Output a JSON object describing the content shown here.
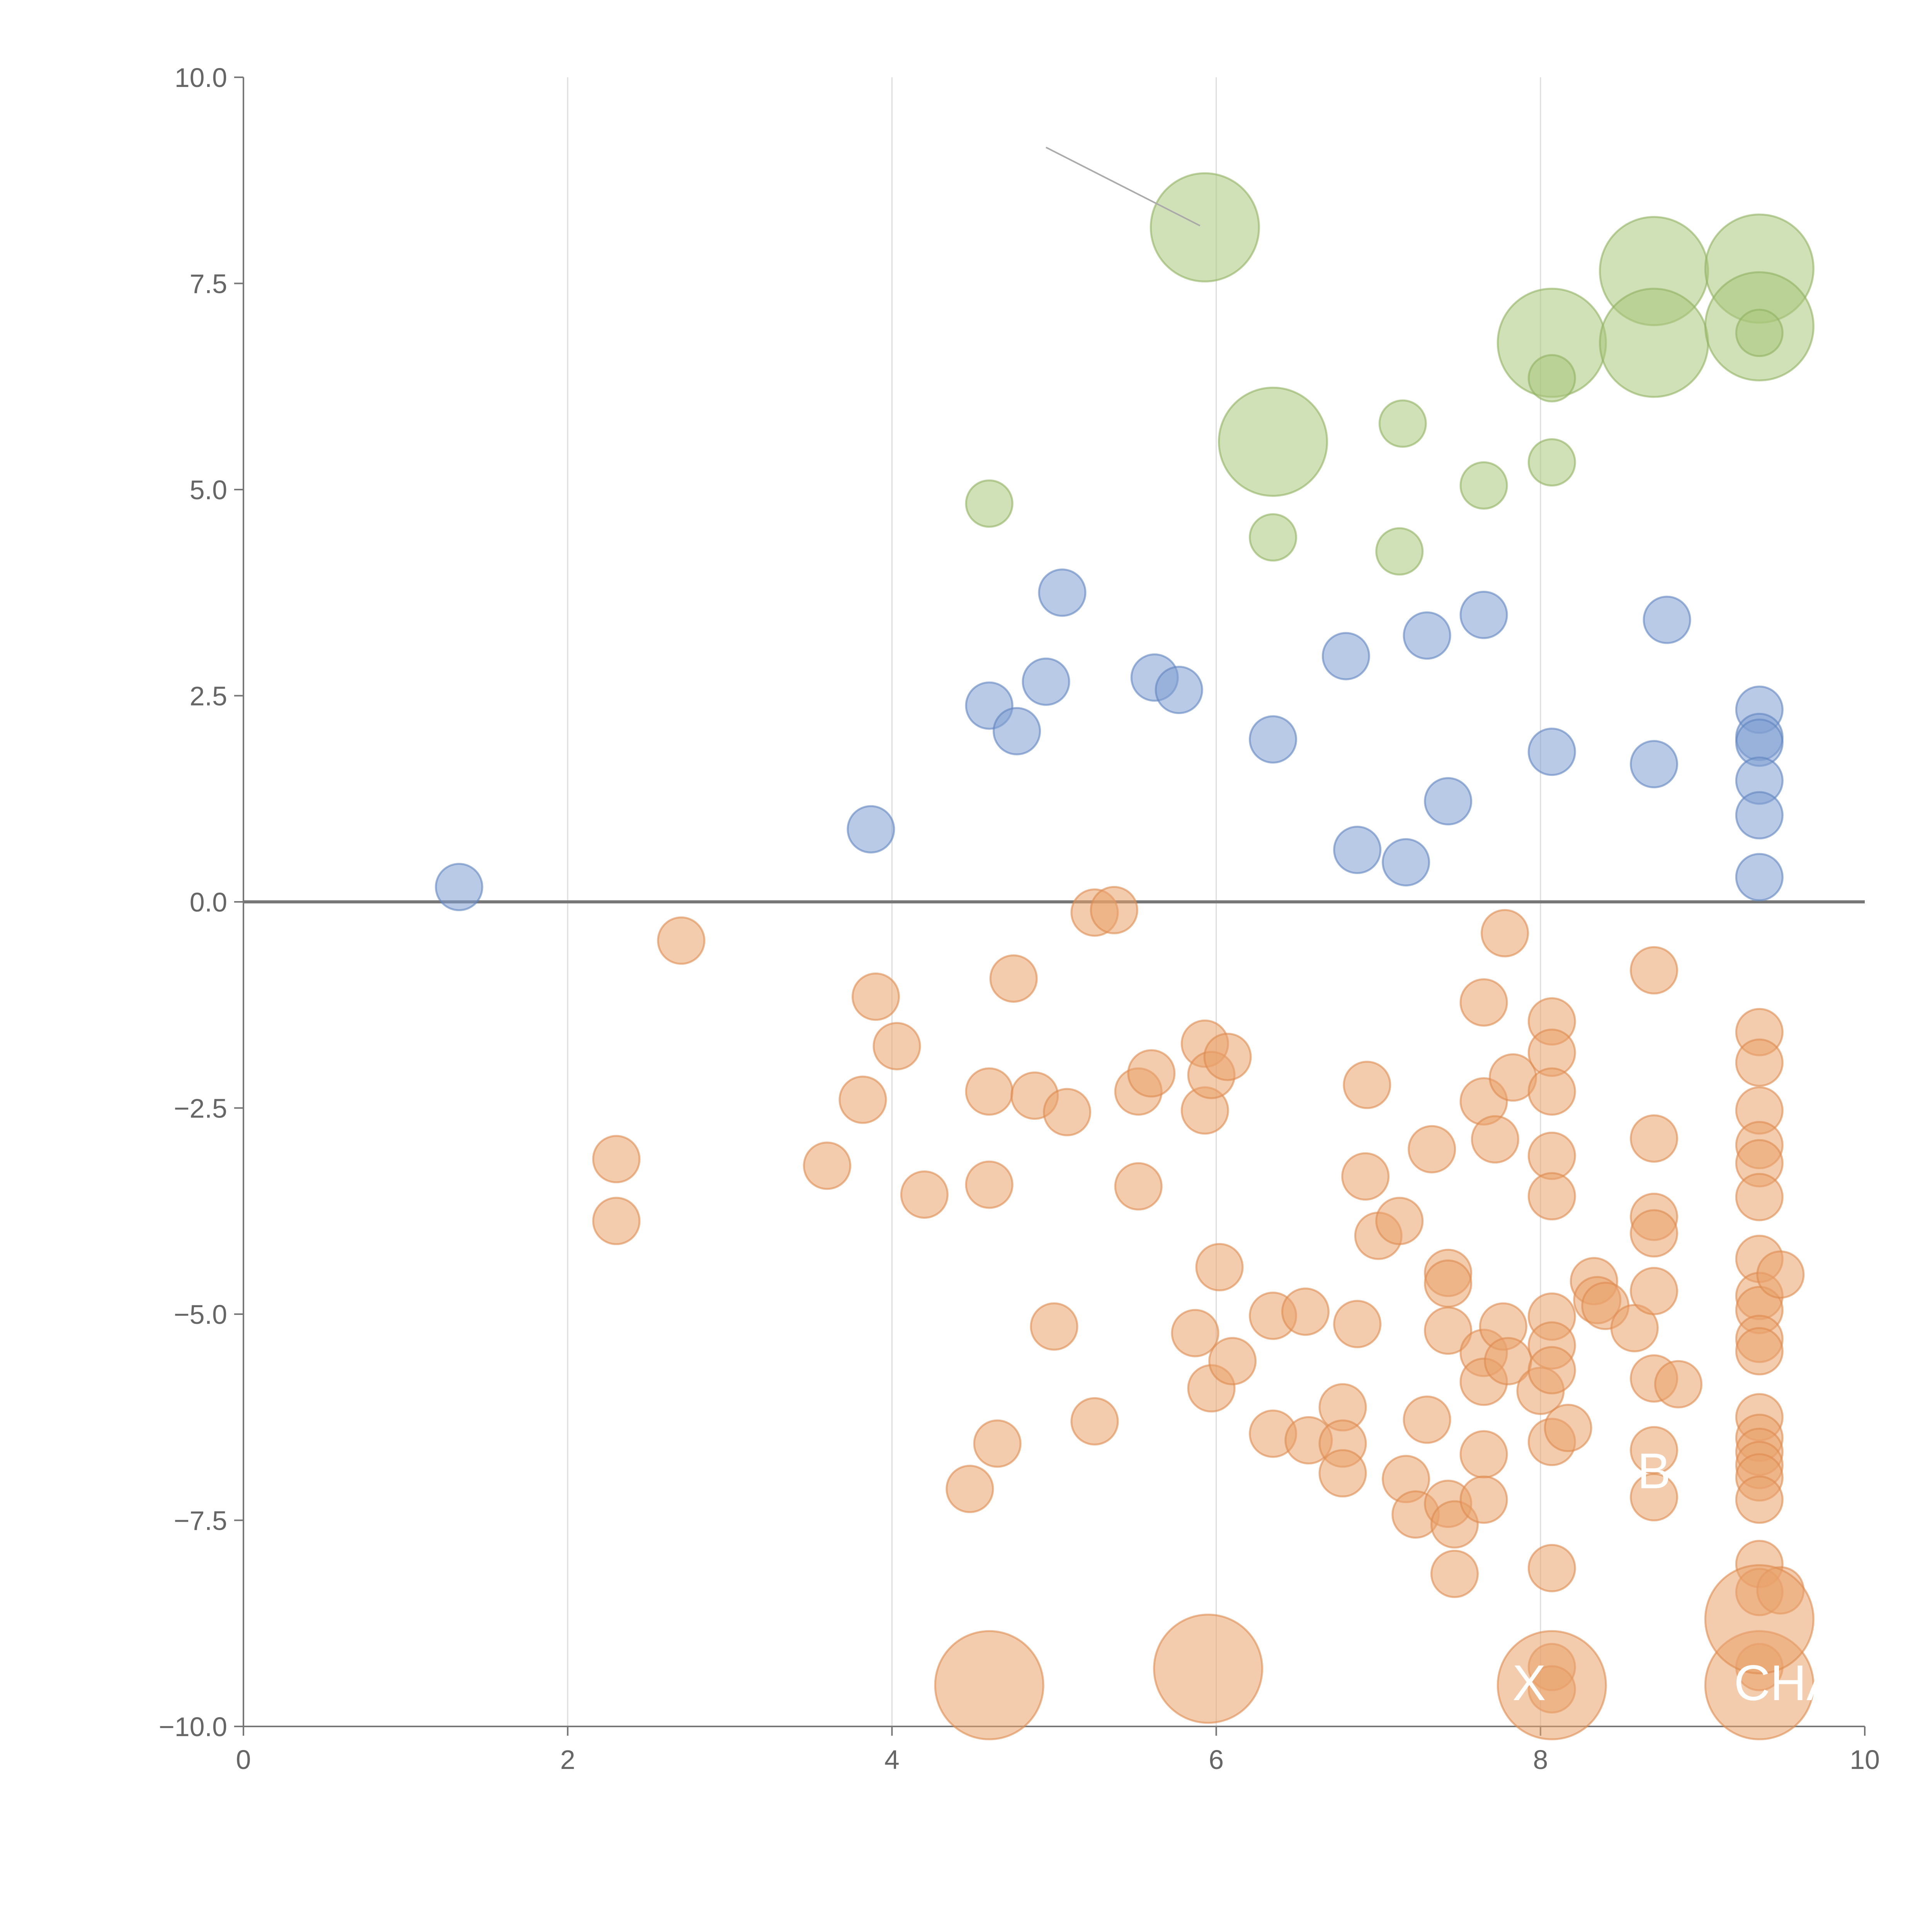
{
  "chart_data": {
    "type": "scatter",
    "title": "",
    "xlabel": "",
    "ylabel": "",
    "xlim": [
      0,
      10
    ],
    "ylim": [
      -10,
      10
    ],
    "grid": "vertical",
    "x_ticks": [
      "0",
      "2",
      "4",
      "6",
      "8",
      "10"
    ],
    "y_ticks": [
      "10.0",
      "7.5",
      "5.0",
      "2.5",
      "0.0",
      "−2.5",
      "−5.0",
      "−7.5",
      "−10.0"
    ],
    "colors": {
      "green": "#a9c77c",
      "blue": "#7f9fd1",
      "orange": "#eaa26c",
      "green_stroke": "#8fb060",
      "blue_stroke": "#5f84c0",
      "orange_stroke": "#de8a4f"
    },
    "series": [
      {
        "name": "green",
        "color": "green",
        "points": [
          [
            5.93,
            8.18,
            2
          ],
          [
            6.35,
            5.58,
            2
          ],
          [
            8.07,
            6.78,
            2
          ],
          [
            8.7,
            7.65,
            2
          ],
          [
            8.7,
            6.78,
            2
          ],
          [
            9.35,
            7.68,
            2
          ],
          [
            9.35,
            6.98,
            2
          ],
          [
            9.35,
            6.9,
            0
          ],
          [
            8.07,
            6.35,
            0
          ],
          [
            7.15,
            5.8,
            0
          ],
          [
            7.65,
            5.05,
            0
          ],
          [
            8.07,
            5.33,
            0
          ],
          [
            4.6,
            4.83,
            0
          ],
          [
            6.35,
            4.42,
            0
          ],
          [
            7.13,
            4.25,
            0
          ]
        ]
      },
      {
        "name": "blue",
        "color": "blue",
        "points": [
          [
            1.33,
            0.18,
            0
          ],
          [
            3.87,
            0.88,
            0
          ],
          [
            4.6,
            2.38,
            0
          ],
          [
            4.77,
            2.07,
            0
          ],
          [
            4.95,
            2.67,
            0
          ],
          [
            5.05,
            3.75,
            0
          ],
          [
            5.62,
            2.72,
            0
          ],
          [
            5.77,
            2.57,
            0
          ],
          [
            6.35,
            1.97,
            0
          ],
          [
            6.8,
            2.98,
            0
          ],
          [
            6.87,
            0.63,
            0
          ],
          [
            7.17,
            0.48,
            0
          ],
          [
            7.3,
            3.23,
            0
          ],
          [
            7.43,
            1.22,
            0
          ],
          [
            7.65,
            3.48,
            0
          ],
          [
            8.07,
            1.82,
            0
          ],
          [
            8.7,
            1.67,
            0
          ],
          [
            8.78,
            3.42,
            0
          ],
          [
            9.35,
            2.33,
            0
          ],
          [
            9.35,
            2.0,
            0
          ],
          [
            9.35,
            1.93,
            0
          ],
          [
            9.35,
            1.47,
            0
          ],
          [
            9.35,
            1.05,
            0
          ],
          [
            9.35,
            0.3,
            0
          ]
        ]
      },
      {
        "name": "orange",
        "color": "orange",
        "points": [
          [
            2.3,
            -3.12,
            0
          ],
          [
            2.3,
            -3.87,
            0
          ],
          [
            2.7,
            -0.47,
            0
          ],
          [
            3.6,
            -3.2,
            0
          ],
          [
            3.82,
            -2.4,
            0
          ],
          [
            3.9,
            -1.15,
            0
          ],
          [
            4.03,
            -1.75,
            0
          ],
          [
            4.2,
            -3.55,
            0
          ],
          [
            4.48,
            -7.12,
            0
          ],
          [
            4.6,
            -2.3,
            0
          ],
          [
            4.6,
            -3.43,
            0
          ],
          [
            4.65,
            -6.57,
            0
          ],
          [
            4.75,
            -0.93,
            0
          ],
          [
            4.88,
            -2.35,
            0
          ],
          [
            5.0,
            -5.15,
            0
          ],
          [
            5.08,
            -2.55,
            0
          ],
          [
            5.25,
            -0.13,
            0
          ],
          [
            5.25,
            -6.3,
            0
          ],
          [
            5.37,
            -0.1,
            0
          ],
          [
            5.52,
            -2.3,
            0
          ],
          [
            5.52,
            -3.45,
            0
          ],
          [
            5.6,
            -2.08,
            0
          ],
          [
            5.87,
            -5.23,
            0
          ],
          [
            5.93,
            -1.72,
            0
          ],
          [
            5.93,
            -2.53,
            0
          ],
          [
            5.97,
            -2.1,
            0
          ],
          [
            5.97,
            -5.9,
            0
          ],
          [
            6.02,
            -4.43,
            0
          ],
          [
            6.07,
            -1.88,
            0
          ],
          [
            6.1,
            -5.57,
            0
          ],
          [
            6.35,
            -5.02,
            0
          ],
          [
            6.35,
            -6.45,
            0
          ],
          [
            6.55,
            -4.97,
            0
          ],
          [
            6.57,
            -6.53,
            0
          ],
          [
            6.78,
            -6.13,
            0
          ],
          [
            6.78,
            -6.57,
            0
          ],
          [
            6.78,
            -6.93,
            0
          ],
          [
            6.87,
            -5.12,
            0
          ],
          [
            6.92,
            -3.33,
            0
          ],
          [
            6.93,
            -2.22,
            0
          ],
          [
            7.0,
            -4.05,
            0
          ],
          [
            7.13,
            -3.87,
            0
          ],
          [
            7.17,
            -7.0,
            0
          ],
          [
            7.23,
            -7.43,
            0
          ],
          [
            7.3,
            -6.28,
            0
          ],
          [
            7.33,
            -3.0,
            0
          ],
          [
            7.43,
            -4.5,
            0
          ],
          [
            7.43,
            -4.63,
            0
          ],
          [
            7.43,
            -5.2,
            0
          ],
          [
            7.43,
            -7.3,
            0
          ],
          [
            7.47,
            -7.55,
            0
          ],
          [
            7.47,
            -8.15,
            0
          ],
          [
            7.65,
            -1.22,
            0
          ],
          [
            7.65,
            -2.42,
            0
          ],
          [
            7.65,
            -5.47,
            0
          ],
          [
            7.65,
            -5.82,
            0
          ],
          [
            7.65,
            -6.7,
            0
          ],
          [
            7.65,
            -7.25,
            0
          ],
          [
            7.72,
            -2.88,
            0
          ],
          [
            7.77,
            -5.15,
            0
          ],
          [
            7.78,
            -0.38,
            0
          ],
          [
            7.8,
            -5.57,
            0
          ],
          [
            7.83,
            -2.13,
            0
          ],
          [
            8.0,
            -5.93,
            0
          ],
          [
            8.07,
            -1.45,
            0
          ],
          [
            8.07,
            -1.83,
            0
          ],
          [
            8.07,
            -2.3,
            0
          ],
          [
            8.07,
            -3.08,
            0
          ],
          [
            8.07,
            -3.57,
            0
          ],
          [
            8.07,
            -5.03,
            0
          ],
          [
            8.07,
            -5.38,
            0
          ],
          [
            8.07,
            -5.68,
            0
          ],
          [
            8.07,
            -6.55,
            0
          ],
          [
            8.07,
            -8.08,
            0
          ],
          [
            8.07,
            -9.28,
            0
          ],
          [
            8.07,
            -9.55,
            0
          ],
          [
            8.17,
            -6.38,
            0
          ],
          [
            8.33,
            -4.6,
            0
          ],
          [
            8.35,
            -4.83,
            0
          ],
          [
            8.4,
            -4.9,
            0
          ],
          [
            8.58,
            -5.17,
            0
          ],
          [
            8.7,
            -0.83,
            0
          ],
          [
            8.7,
            -2.87,
            0
          ],
          [
            8.7,
            -3.82,
            0
          ],
          [
            8.7,
            -4.02,
            0
          ],
          [
            8.7,
            -4.72,
            0
          ],
          [
            8.7,
            -5.78,
            0
          ],
          [
            8.7,
            -6.65,
            0
          ],
          [
            8.7,
            -7.22,
            0
          ],
          [
            8.85,
            -5.85,
            0
          ],
          [
            9.35,
            -1.58,
            0
          ],
          [
            9.35,
            -1.95,
            0
          ],
          [
            9.35,
            -2.53,
            0
          ],
          [
            9.35,
            -2.95,
            0
          ],
          [
            9.35,
            -3.17,
            0
          ],
          [
            9.35,
            -3.58,
            0
          ],
          [
            9.35,
            -4.33,
            0
          ],
          [
            9.35,
            -4.78,
            0
          ],
          [
            9.35,
            -4.95,
            0
          ],
          [
            9.35,
            -5.3,
            0
          ],
          [
            9.35,
            -5.45,
            0
          ],
          [
            9.35,
            -6.25,
            0
          ],
          [
            9.35,
            -6.5,
            0
          ],
          [
            9.35,
            -6.67,
            0
          ],
          [
            9.35,
            -6.83,
            0
          ],
          [
            9.35,
            -6.98,
            0
          ],
          [
            9.35,
            -7.25,
            0
          ],
          [
            9.35,
            -8.03,
            0
          ],
          [
            9.35,
            -8.37,
            0
          ],
          [
            9.35,
            -9.28,
            0
          ],
          [
            9.48,
            -4.52,
            0
          ],
          [
            9.48,
            -8.35,
            0
          ],
          [
            4.6,
            -9.5,
            2
          ],
          [
            5.95,
            -9.3,
            2
          ],
          [
            8.07,
            -9.5,
            2
          ],
          [
            9.35,
            -9.5,
            2
          ],
          [
            9.35,
            -8.7,
            2
          ]
        ]
      }
    ],
    "labels": [
      {
        "text": "B",
        "x": 8.7,
        "y": -6.9,
        "color": "#ffffff"
      },
      {
        "text": "X",
        "x": 7.93,
        "y": -9.47,
        "color": "#ffffff"
      },
      {
        "text": "CHA",
        "x": 9.52,
        "y": -9.47,
        "color": "#ffffff"
      }
    ]
  }
}
